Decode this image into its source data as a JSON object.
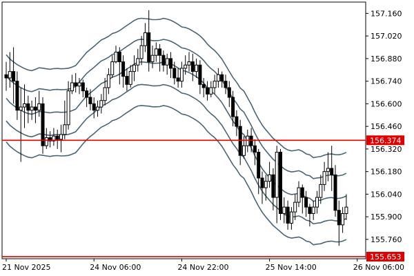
{
  "chart_data": {
    "type": "candlestick",
    "title": "",
    "xlabel": "",
    "ylabel": "",
    "ylim": [
      155.653,
      157.23
    ],
    "grid": false,
    "y_ticks": [
      "157.160",
      "157.020",
      "156.880",
      "156.740",
      "156.600",
      "156.460",
      "156.320",
      "156.180",
      "156.040",
      "155.900",
      "155.760"
    ],
    "x_ticks": [
      "21 Nov 2025",
      "24 Nov 06:00",
      "24 Nov 22:00",
      "25 Nov 14:00",
      "26 Nov 06:00"
    ],
    "x_tick_bars": [
      0,
      24,
      48,
      72,
      96
    ],
    "horizontal_levels": [
      {
        "value": 156.374,
        "label": "156.374",
        "color": "#e00000"
      },
      {
        "value": 155.653,
        "label": "155.653",
        "color": "#e00000"
      }
    ],
    "colors": {
      "candle": "#000000",
      "bands": "#4a6472",
      "background": "#ffffff"
    },
    "candles": [
      [
        156.78,
        156.76,
        156.86,
        156.68
      ],
      [
        156.76,
        156.8,
        156.92,
        156.7
      ],
      [
        156.8,
        156.74,
        156.95,
        156.6
      ],
      [
        156.74,
        156.56,
        156.8,
        156.5
      ],
      [
        156.56,
        156.58,
        156.7,
        156.24
      ],
      [
        156.58,
        156.6,
        156.72,
        156.45
      ],
      [
        156.6,
        156.56,
        156.65,
        156.48
      ],
      [
        156.56,
        156.58,
        156.62,
        156.5
      ],
      [
        156.58,
        156.56,
        156.64,
        156.48
      ],
      [
        156.56,
        156.6,
        156.68,
        156.52
      ],
      [
        156.6,
        156.34,
        156.64,
        156.29
      ],
      [
        156.34,
        156.39,
        156.45,
        156.32
      ],
      [
        156.39,
        156.37,
        156.43,
        156.33
      ],
      [
        156.37,
        156.4,
        156.45,
        156.34
      ],
      [
        156.4,
        156.38,
        156.44,
        156.32
      ],
      [
        156.38,
        156.41,
        156.47,
        156.3
      ],
      [
        156.41,
        156.47,
        156.62,
        156.38
      ],
      [
        156.47,
        156.68,
        156.74,
        156.44
      ],
      [
        156.68,
        156.73,
        156.78,
        156.66
      ],
      [
        156.73,
        156.71,
        156.79,
        156.67
      ],
      [
        156.71,
        156.73,
        156.76,
        156.66
      ],
      [
        156.73,
        156.68,
        156.75,
        156.64
      ],
      [
        156.68,
        156.64,
        156.7,
        156.58
      ],
      [
        156.64,
        156.6,
        156.69,
        156.56
      ],
      [
        156.6,
        156.56,
        156.64,
        156.51
      ],
      [
        156.56,
        156.58,
        156.62,
        156.52
      ],
      [
        156.58,
        156.62,
        156.66,
        156.54
      ],
      [
        156.62,
        156.7,
        156.76,
        156.59
      ],
      [
        156.7,
        156.78,
        156.82,
        156.66
      ],
      [
        156.78,
        156.86,
        156.9,
        156.76
      ],
      [
        156.86,
        156.92,
        156.96,
        156.85
      ],
      [
        156.92,
        156.86,
        156.95,
        156.72
      ],
      [
        156.86,
        156.77,
        156.9,
        156.7
      ],
      [
        156.77,
        156.72,
        156.82,
        156.68
      ],
      [
        156.72,
        156.8,
        156.84,
        156.7
      ],
      [
        156.8,
        156.84,
        156.9,
        156.74
      ],
      [
        156.84,
        156.88,
        156.94,
        156.8
      ],
      [
        156.88,
        156.96,
        157.02,
        156.84
      ],
      [
        156.96,
        157.04,
        157.1,
        156.92
      ],
      [
        157.04,
        156.86,
        157.18,
        156.8
      ],
      [
        156.86,
        156.9,
        156.96,
        156.82
      ],
      [
        156.9,
        156.94,
        156.98,
        156.86
      ],
      [
        156.94,
        156.9,
        156.97,
        156.8
      ],
      [
        156.9,
        156.84,
        156.93,
        156.8
      ],
      [
        156.84,
        156.88,
        156.91,
        156.78
      ],
      [
        156.88,
        156.82,
        156.92,
        156.76
      ],
      [
        156.82,
        156.76,
        156.86,
        156.72
      ],
      [
        156.76,
        156.74,
        156.82,
        156.7
      ],
      [
        156.74,
        156.82,
        156.86,
        156.7
      ],
      [
        156.82,
        156.84,
        156.9,
        156.78
      ],
      [
        156.84,
        156.86,
        156.92,
        156.8
      ],
      [
        156.86,
        156.8,
        156.91,
        156.74
      ],
      [
        156.8,
        156.84,
        156.88,
        156.76
      ],
      [
        156.84,
        156.72,
        156.87,
        156.66
      ],
      [
        156.72,
        156.7,
        156.76,
        156.64
      ],
      [
        156.7,
        156.66,
        156.74,
        156.62
      ],
      [
        156.66,
        156.7,
        156.74,
        156.64
      ],
      [
        156.7,
        156.74,
        156.78,
        156.66
      ],
      [
        156.74,
        156.78,
        156.82,
        156.7
      ],
      [
        156.78,
        156.74,
        156.8,
        156.7
      ],
      [
        156.74,
        156.7,
        156.78,
        156.66
      ],
      [
        156.7,
        156.64,
        156.74,
        156.58
      ],
      [
        156.64,
        156.52,
        156.68,
        156.46
      ],
      [
        156.52,
        156.46,
        156.56,
        156.4
      ],
      [
        156.46,
        156.28,
        156.5,
        156.22
      ],
      [
        156.28,
        156.34,
        156.4,
        156.26
      ],
      [
        156.34,
        156.4,
        156.44,
        156.3
      ],
      [
        156.4,
        156.34,
        156.45,
        156.3
      ],
      [
        156.34,
        156.3,
        156.38,
        156.22
      ],
      [
        156.3,
        156.14,
        156.32,
        156.04
      ],
      [
        156.14,
        156.08,
        156.18,
        155.98
      ],
      [
        156.08,
        156.12,
        156.16,
        156.0
      ],
      [
        156.12,
        156.16,
        156.24,
        156.08
      ],
      [
        156.16,
        156.02,
        156.2,
        155.94
      ],
      [
        156.02,
        156.3,
        156.34,
        155.86
      ],
      [
        156.3,
        155.92,
        156.32,
        155.88
      ],
      [
        155.92,
        155.96,
        156.02,
        155.86
      ],
      [
        155.96,
        155.86,
        156.0,
        155.82
      ],
      [
        155.86,
        155.93,
        155.96,
        155.82
      ],
      [
        155.93,
        155.99,
        156.04,
        155.88
      ],
      [
        155.99,
        156.08,
        156.12,
        155.96
      ],
      [
        156.08,
        156.02,
        156.1,
        155.92
      ],
      [
        156.02,
        155.96,
        156.06,
        155.9
      ],
      [
        155.96,
        155.92,
        155.98,
        155.84
      ],
      [
        155.92,
        155.96,
        156.0,
        155.88
      ],
      [
        155.96,
        156.02,
        156.06,
        155.92
      ],
      [
        156.02,
        156.1,
        156.16,
        155.98
      ],
      [
        156.1,
        156.18,
        156.24,
        156.06
      ],
      [
        156.18,
        156.2,
        156.3,
        156.12
      ],
      [
        156.2,
        156.16,
        156.34,
        156.06
      ],
      [
        156.16,
        155.94,
        156.22,
        155.9
      ],
      [
        155.94,
        155.85,
        156.0,
        155.72
      ],
      [
        155.85,
        155.92,
        155.96,
        155.8
      ],
      [
        155.92,
        155.96,
        156.04,
        155.88
      ]
    ]
  }
}
